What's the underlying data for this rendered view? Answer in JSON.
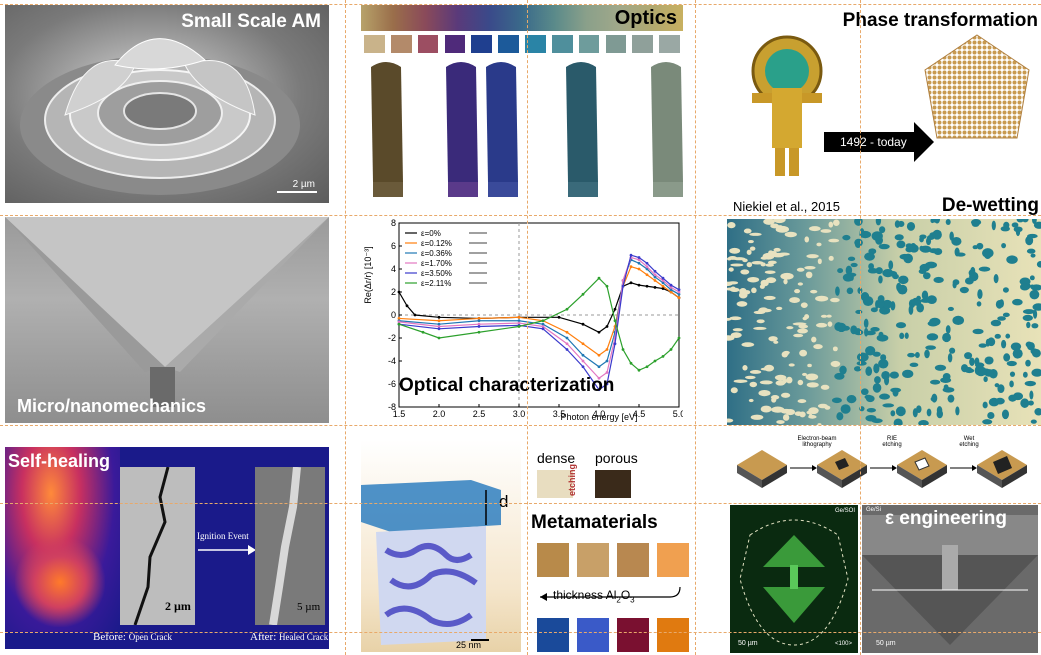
{
  "panels": {
    "small_scale_am": {
      "title": "Small Scale AM",
      "scalebar": "2 µm"
    },
    "optics": {
      "title": "Optics",
      "swatch_colors": [
        "#c9b38a",
        "#b38a6a",
        "#9c4e62",
        "#4f2a7a",
        "#1f3f8f",
        "#1c5a9a",
        "#2a84a6",
        "#4f8f9c",
        "#6e9c9c",
        "#7f9a94",
        "#8fa09a",
        "#9aa8a4"
      ]
    },
    "phase": {
      "title": "Phase transformation",
      "arrow_label": "1492 - today"
    },
    "dewetting": {
      "title": "De-wetting",
      "citation": "Niekiel et al., 2015"
    },
    "micro": {
      "title": "Micro/nanomechanics"
    },
    "optical_char": {
      "title": "Optical characterization"
    },
    "self_healing": {
      "title": "Self-healing",
      "scalebar_left": "2 µm",
      "scalebar_right": "5 µm",
      "arrow_label": "Ignition Event",
      "before_prefix": "Before:",
      "before_label": "Open Crack",
      "after_prefix": "After:",
      "after_label": "Healed Crack"
    },
    "porous": {
      "dense": "dense",
      "porous": "porous",
      "etching": "etching",
      "d_label": "d",
      "scalebar": "25 nm"
    },
    "metamaterials": {
      "title": "Metamaterials",
      "thickness_label": "thickness Al",
      "thickness_sub": "2",
      "thickness_tail": "O",
      "thickness_sub2": "3"
    },
    "litho": {
      "step1": "Electron-beam lithography",
      "step2": "RIE etching",
      "step3": "Wet etching"
    },
    "eps": {
      "title": "ε engineering",
      "label_left": "Ge/SOI",
      "label_right": "Ge/Si",
      "scalebar_left": "50 µm",
      "scalebar_right": "50 µm",
      "axis_100": "<100>"
    }
  },
  "chart_data": {
    "type": "line",
    "ylabel": "Re(Δr/r) [10⁻³]",
    "xlabel": "Photon energy [eV]",
    "xlim": [
      1.5,
      5.0
    ],
    "ylim": [
      -8,
      8
    ],
    "xticks": [
      "1.5",
      "2.0",
      "2.5",
      "3.0",
      "3.5",
      "4.0",
      "4.5",
      "5.0"
    ],
    "yticks": [
      "8",
      "6",
      "4",
      "2",
      "0",
      "-2",
      "-4",
      "-6",
      "-8"
    ],
    "legend_position": "top-left",
    "series": [
      {
        "name": "ε=0%",
        "color": "#000000",
        "x": [
          1.5,
          1.6,
          1.7,
          2.0,
          2.5,
          3.0,
          3.5,
          3.8,
          4.0,
          4.1,
          4.2,
          4.3,
          4.4,
          4.5,
          4.6,
          4.7,
          4.8,
          4.9,
          5.0
        ],
        "y": [
          2.0,
          0.8,
          0.0,
          -0.2,
          -0.3,
          -0.2,
          -0.2,
          -0.8,
          -1.5,
          -1.0,
          0.5,
          2.5,
          2.8,
          2.6,
          2.5,
          2.4,
          2.3,
          2.0,
          1.5
        ]
      },
      {
        "name": "ε=0.12%",
        "color": "#ff7f0e",
        "x": [
          1.5,
          2.0,
          2.5,
          3.0,
          3.3,
          3.6,
          3.8,
          4.0,
          4.1,
          4.2,
          4.3,
          4.4,
          4.5,
          4.6,
          4.7,
          4.8,
          4.9,
          5.0
        ],
        "y": [
          -0.3,
          -0.5,
          -0.3,
          -0.2,
          -0.5,
          -1.5,
          -2.5,
          -3.5,
          -3.0,
          -1.0,
          2.5,
          4.2,
          4.0,
          3.5,
          3.0,
          2.5,
          2.0,
          1.5
        ]
      },
      {
        "name": "ε=0.36%",
        "color": "#1f77b4",
        "x": [
          1.5,
          2.0,
          2.5,
          3.0,
          3.3,
          3.6,
          3.8,
          4.0,
          4.1,
          4.2,
          4.3,
          4.4,
          4.5,
          4.6,
          4.7,
          4.8,
          4.9,
          5.0
        ],
        "y": [
          -0.5,
          -0.8,
          -0.5,
          -0.5,
          -0.8,
          -2.0,
          -3.5,
          -4.5,
          -4.0,
          -1.5,
          3.0,
          4.8,
          4.5,
          4.0,
          3.3,
          2.8,
          2.2,
          1.8
        ]
      },
      {
        "name": "ε=1.70%",
        "color": "#e377c2",
        "x": [
          1.5,
          2.0,
          2.5,
          3.0,
          3.3,
          3.6,
          3.8,
          4.0,
          4.1,
          4.2,
          4.3,
          4.4,
          4.5,
          4.6,
          4.7,
          4.8,
          4.9,
          5.0
        ],
        "y": [
          -0.6,
          -1.0,
          -0.8,
          -0.7,
          -1.0,
          -2.5,
          -4.0,
          -5.5,
          -5.0,
          -2.0,
          3.0,
          5.0,
          4.8,
          4.2,
          3.5,
          3.0,
          2.4,
          2.0
        ]
      },
      {
        "name": "ε=3.50%",
        "color": "#3a3acc",
        "x": [
          1.5,
          2.0,
          2.5,
          3.0,
          3.3,
          3.6,
          3.8,
          4.0,
          4.1,
          4.2,
          4.3,
          4.4,
          4.5,
          4.6,
          4.7,
          4.8,
          4.9,
          5.0
        ],
        "y": [
          -0.8,
          -1.2,
          -1.0,
          -0.9,
          -1.2,
          -3.0,
          -4.5,
          -6.5,
          -6.0,
          -2.5,
          2.5,
          5.2,
          5.0,
          4.5,
          3.8,
          3.2,
          2.6,
          2.2
        ]
      },
      {
        "name": "ε=2.11%",
        "color": "#2ca02c",
        "x": [
          1.5,
          1.8,
          2.0,
          2.5,
          3.0,
          3.3,
          3.6,
          3.8,
          4.0,
          4.1,
          4.2,
          4.3,
          4.4,
          4.5,
          4.6,
          4.7,
          4.8,
          4.9,
          5.0
        ],
        "y": [
          -0.8,
          -1.5,
          -2.0,
          -1.5,
          -1.0,
          -0.5,
          0.5,
          1.8,
          3.2,
          2.5,
          -0.5,
          -3.0,
          -4.2,
          -4.8,
          -4.5,
          -4.0,
          -3.6,
          -3.0,
          -2.0
        ]
      }
    ]
  }
}
